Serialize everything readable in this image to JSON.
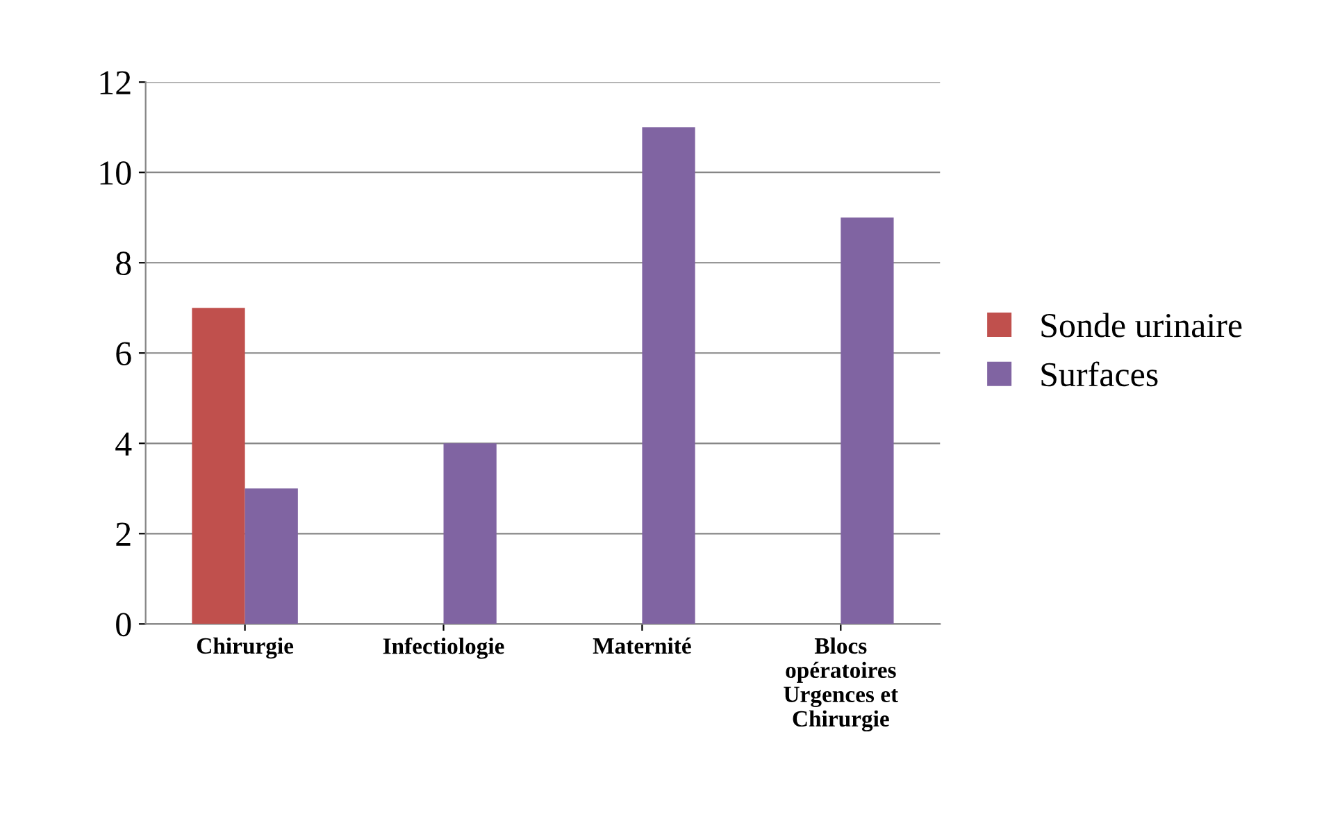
{
  "chart_data": {
    "type": "bar",
    "categories": [
      "Chirurgie",
      "Infectiologie",
      "Maternité",
      "Blocs\nopératoires\nUrgences et\nChirurgie"
    ],
    "series": [
      {
        "name": "Sonde urinaire",
        "color": "#c0504d",
        "values": [
          7,
          0,
          0,
          0
        ]
      },
      {
        "name": "Surfaces",
        "color": "#8064a2",
        "values": [
          3,
          4,
          11,
          9
        ]
      }
    ],
    "ylim": [
      0,
      12
    ],
    "yticks": [
      0,
      2,
      4,
      6,
      8,
      10,
      12
    ],
    "grid": "y",
    "legend": "right"
  }
}
